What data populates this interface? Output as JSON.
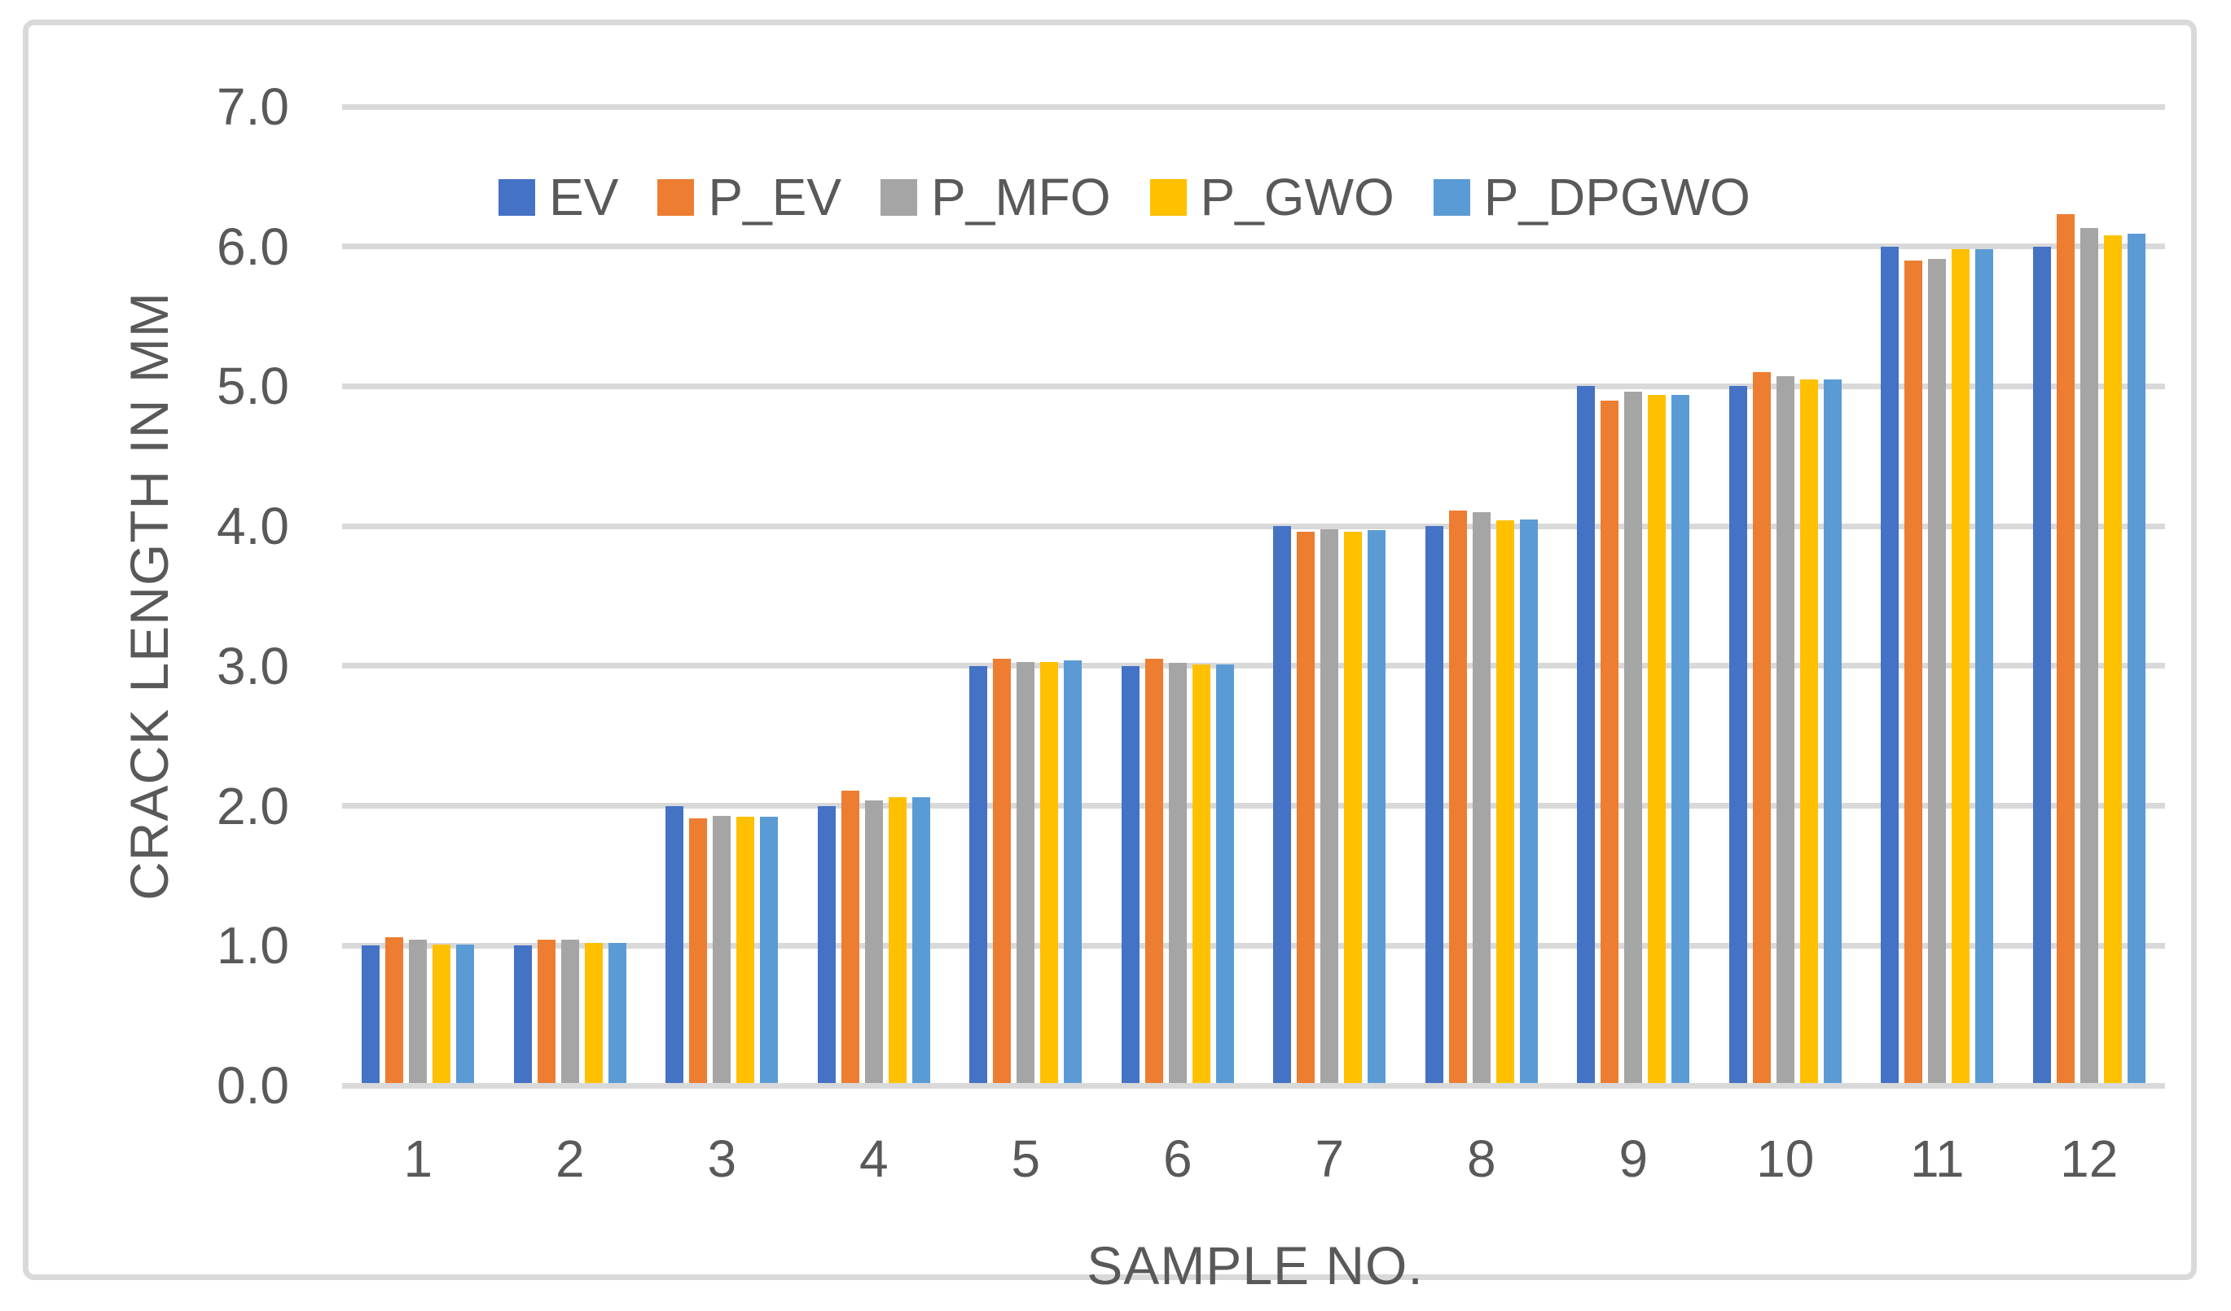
{
  "figure": {
    "background": "#FFFFFF",
    "border_color": "#D9D9D9"
  },
  "chart_data": {
    "type": "bar",
    "title": "",
    "xlabel": "SAMPLE NO.",
    "ylabel": "CRACK LENGTH IN MM",
    "categories": [
      "1",
      "2",
      "3",
      "4",
      "5",
      "6",
      "7",
      "8",
      "9",
      "10",
      "11",
      "12"
    ],
    "series": [
      {
        "name": "EV",
        "color": "#4472C4",
        "values": [
          1.0,
          1.0,
          2.0,
          2.0,
          3.0,
          3.0,
          4.0,
          4.0,
          5.0,
          5.0,
          6.0,
          6.0
        ]
      },
      {
        "name": "P_EV",
        "color": "#ED7D31",
        "values": [
          1.06,
          1.04,
          1.91,
          2.11,
          3.05,
          3.05,
          3.96,
          4.11,
          4.9,
          5.1,
          5.9,
          6.23
        ]
      },
      {
        "name": "P_MFO",
        "color": "#A5A5A5",
        "values": [
          1.04,
          1.04,
          1.93,
          2.04,
          3.03,
          3.02,
          3.98,
          4.1,
          4.96,
          5.07,
          5.91,
          6.13
        ]
      },
      {
        "name": "P_GWO",
        "color": "#FFC000",
        "values": [
          1.01,
          1.02,
          1.92,
          2.06,
          3.03,
          3.01,
          3.96,
          4.04,
          4.94,
          5.05,
          5.98,
          6.08
        ]
      },
      {
        "name": "P_DPGWO",
        "color": "#5B9BD5",
        "values": [
          1.01,
          1.02,
          1.92,
          2.06,
          3.04,
          3.01,
          3.97,
          4.05,
          4.94,
          5.05,
          5.98,
          6.09
        ]
      }
    ],
    "ylim": [
      0,
      7
    ],
    "y_ticks": [
      "0.0",
      "1.0",
      "2.0",
      "3.0",
      "4.0",
      "5.0",
      "6.0",
      "7.0"
    ],
    "grid": true,
    "legend_position": "top-inside",
    "axis_color": "#D9D9D9",
    "text_color": "#595959"
  }
}
